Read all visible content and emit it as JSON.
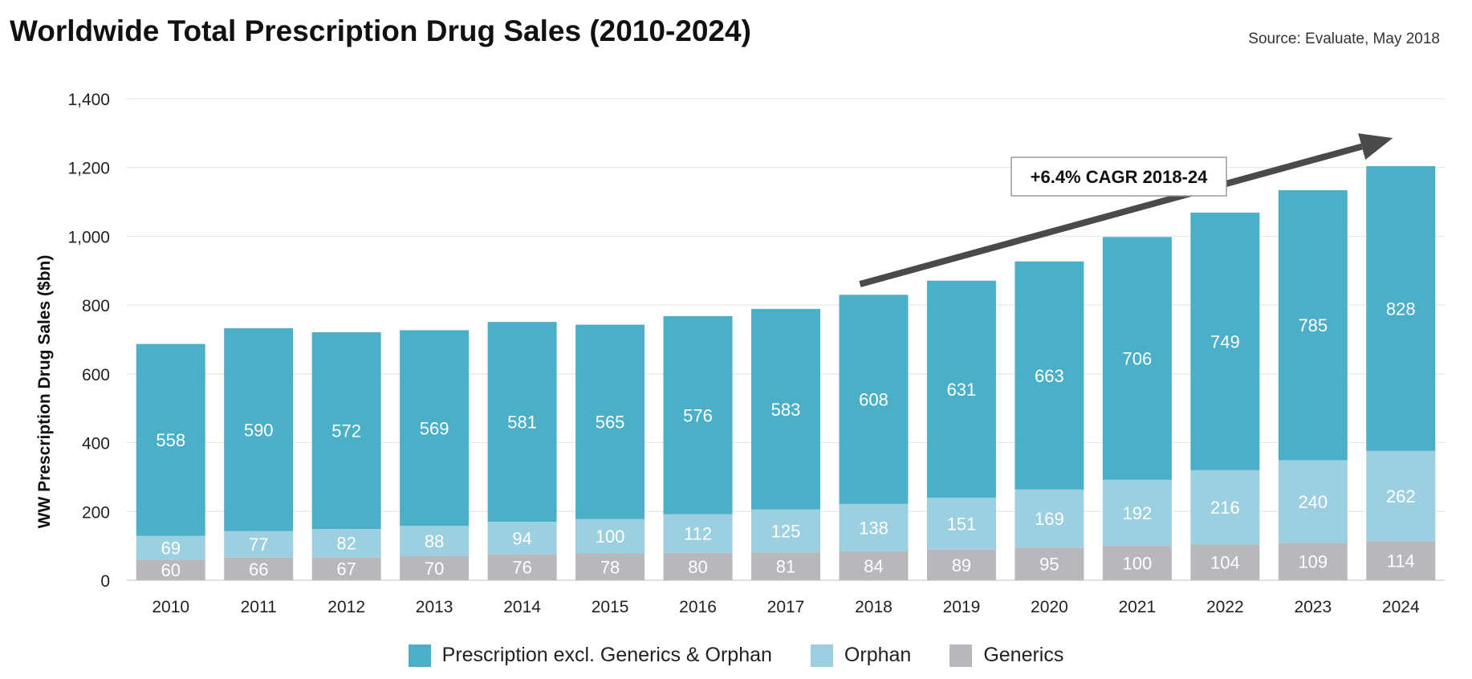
{
  "title": "Worldwide Total Prescription Drug Sales (2010-2024)",
  "source": "Source: Evaluate, May 2018",
  "colors": {
    "prescription": "#4bafc8",
    "orphan": "#9ccfe0",
    "generics": "#b8b7bc",
    "arrow": "#4a4a4d",
    "grid": "#e6e6e6"
  },
  "chart_data": {
    "type": "bar",
    "stacked": true,
    "title": "Worldwide Total Prescription Drug Sales (2010-2024)",
    "xlabel": "",
    "ylabel": "WW Prescription Drug Sales ($bn)",
    "ylim": [
      0,
      1400
    ],
    "yticks": [
      0,
      200,
      400,
      600,
      800,
      1000,
      1200,
      1400
    ],
    "ytick_labels": [
      "0",
      "200",
      "400",
      "600",
      "800",
      "1,000",
      "1,200",
      "1,400"
    ],
    "grid": true,
    "legend_position": "bottom",
    "categories": [
      "2010",
      "2011",
      "2012",
      "2013",
      "2014",
      "2015",
      "2016",
      "2017",
      "2018",
      "2019",
      "2020",
      "2021",
      "2022",
      "2023",
      "2024"
    ],
    "series": [
      {
        "name": "Generics",
        "key": "generics",
        "values": [
          60,
          66,
          67,
          70,
          76,
          78,
          80,
          81,
          84,
          89,
          95,
          100,
          104,
          109,
          114
        ]
      },
      {
        "name": "Orphan",
        "key": "orphan",
        "values": [
          69,
          77,
          82,
          88,
          94,
          100,
          112,
          125,
          138,
          151,
          169,
          192,
          216,
          240,
          262
        ]
      },
      {
        "name": "Prescription excl. Generics & Orphan",
        "key": "prescription",
        "values": [
          558,
          590,
          572,
          569,
          581,
          565,
          576,
          583,
          608,
          631,
          663,
          706,
          749,
          785,
          828
        ]
      }
    ],
    "annotation": {
      "text": "+6.4% CAGR 2018-24",
      "arrow_from_category": "2018",
      "arrow_to_category": "2024"
    }
  },
  "legend": [
    {
      "label": "Prescription excl. Generics & Orphan",
      "key": "prescription"
    },
    {
      "label": "Orphan",
      "key": "orphan"
    },
    {
      "label": "Generics",
      "key": "generics"
    }
  ]
}
